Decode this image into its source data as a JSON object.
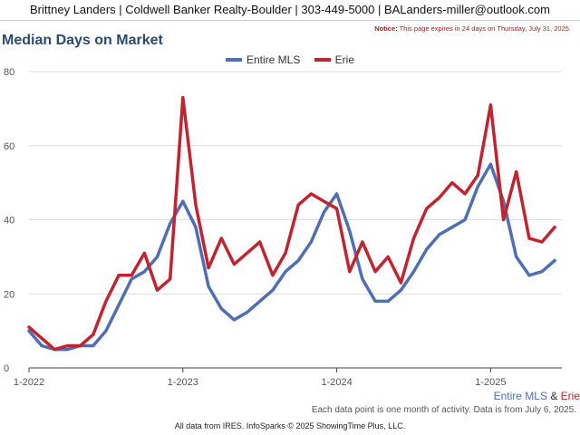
{
  "header": {
    "contact": "Brittney Landers | Coldwell Banker Realty-Boulder | 303-449-5000 | BALanders-miller@outlook.com"
  },
  "notice": {
    "label": "Notice:",
    "text": "This page expires in 24 days on Thursday, July 31, 2025."
  },
  "footer": {
    "legend_a": "Entire MLS",
    "legend_sep": " & ",
    "legend_b": "Erie",
    "note": "Each data point is one month of activity. Data is from July 6, 2025.",
    "source": "All data from IRES. InfoSparks © 2025 ShowingTime Plus, LLC."
  },
  "chart_data": {
    "type": "line",
    "title": "Median Days on Market",
    "ylim": [
      0,
      80
    ],
    "yticks": [
      0,
      20,
      40,
      60,
      80
    ],
    "grid": true,
    "legend_position": "top-center",
    "x_tick_labels": [
      {
        "label": "1-2022",
        "index": 0
      },
      {
        "label": "1-2023",
        "index": 12
      },
      {
        "label": "1-2024",
        "index": 24
      },
      {
        "label": "1-2025",
        "index": 36
      }
    ],
    "x": [
      "2022-01",
      "2022-02",
      "2022-03",
      "2022-04",
      "2022-05",
      "2022-06",
      "2022-07",
      "2022-08",
      "2022-09",
      "2022-10",
      "2022-11",
      "2022-12",
      "2023-01",
      "2023-02",
      "2023-03",
      "2023-04",
      "2023-05",
      "2023-06",
      "2023-07",
      "2023-08",
      "2023-09",
      "2023-10",
      "2023-11",
      "2023-12",
      "2024-01",
      "2024-02",
      "2024-03",
      "2024-04",
      "2024-05",
      "2024-06",
      "2024-07",
      "2024-08",
      "2024-09",
      "2024-10",
      "2024-11",
      "2024-12",
      "2025-01",
      "2025-02",
      "2025-03",
      "2025-04",
      "2025-05",
      "2025-06"
    ],
    "series": [
      {
        "name": "Entire MLS",
        "color": "#4f6eb3",
        "values": [
          10,
          6,
          5,
          5,
          6,
          6,
          10,
          17,
          24,
          26,
          30,
          39,
          45,
          38,
          22,
          16,
          13,
          15,
          18,
          21,
          26,
          29,
          34,
          42,
          47,
          37,
          24,
          18,
          18,
          21,
          26,
          32,
          36,
          38,
          40,
          49,
          55,
          45,
          30,
          25,
          26,
          29
        ]
      },
      {
        "name": "Erie",
        "color": "#c0242f",
        "values": [
          11,
          8,
          5,
          6,
          6,
          9,
          18,
          25,
          25,
          31,
          21,
          24,
          73,
          44,
          27,
          35,
          28,
          31,
          34,
          25,
          31,
          44,
          47,
          45,
          43,
          26,
          34,
          26,
          30,
          23,
          35,
          43,
          46,
          50,
          47,
          52,
          71,
          40,
          53,
          35,
          34,
          38
        ]
      }
    ]
  }
}
